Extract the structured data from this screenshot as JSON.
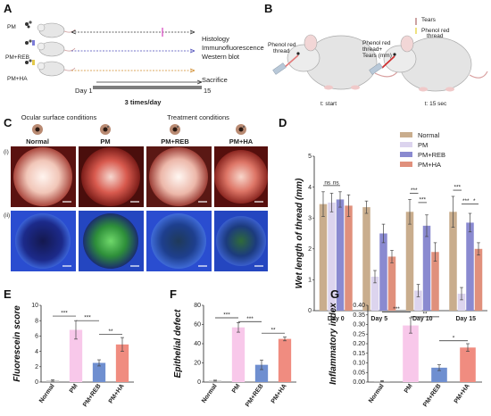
{
  "panel_labels": {
    "a": "A",
    "b": "B",
    "c": "C",
    "d": "D",
    "e": "E",
    "f": "F",
    "g": "G"
  },
  "panel_a": {
    "groups": [
      "PM",
      "PM+REB",
      "PM+HA"
    ],
    "outcomes": [
      "Histology",
      "Immunofluorescence",
      "Western blot"
    ],
    "sacrifice": "Sacrifice",
    "day_start": "Day 1",
    "day_end": "15",
    "frequency": "3 times/day"
  },
  "panel_b": {
    "left_label": "Phenol red thread",
    "left_caption": "t: start",
    "right_tears": "Tears",
    "right_thread": "Phenol red thread",
    "right_label": "Phenol red thread+ Tears (mm)",
    "right_caption": "t: 15 sec"
  },
  "panel_c": {
    "header_left": "Ocular surface conditions",
    "header_right": "Treatment conditions",
    "columns": [
      "Normal",
      "PM",
      "PM+REB",
      "PM+HA"
    ],
    "row_labels": [
      "(i)",
      "(ii)"
    ]
  },
  "chart_data": [
    {
      "id": "D",
      "type": "bar",
      "ylabel": "Wet length of thread (mm)",
      "ylim": [
        0,
        5
      ],
      "yticks": [
        "0",
        "1",
        "2",
        "3",
        "4",
        "5"
      ],
      "categories": [
        "Day 0",
        "Day 5",
        "Day 10",
        "Day 15"
      ],
      "legend_position": "top-right",
      "series": [
        {
          "name": "Normal",
          "color": "#c9ad8d",
          "values": [
            3.45,
            3.35,
            3.2,
            3.2
          ],
          "err": [
            0.4,
            0.2,
            0.4,
            0.5
          ]
        },
        {
          "name": "PM",
          "color": "#dcd4ee",
          "values": [
            3.5,
            1.1,
            0.65,
            0.55
          ],
          "err": [
            0.3,
            0.2,
            0.2,
            0.2
          ]
        },
        {
          "name": "PM+REB",
          "color": "#8a8ad0",
          "values": [
            3.6,
            2.5,
            2.75,
            2.85
          ],
          "err": [
            0.25,
            0.3,
            0.35,
            0.3
          ]
        },
        {
          "name": "PM+HA",
          "color": "#e0907c",
          "values": [
            3.4,
            1.75,
            1.9,
            2.0
          ],
          "err": [
            0.35,
            0.2,
            0.3,
            0.2
          ]
        }
      ],
      "annotations": [
        "ns",
        "ns",
        "***",
        "***",
        "***",
        "***",
        "*"
      ]
    },
    {
      "id": "E",
      "type": "bar",
      "ylabel": "Fluorescein score",
      "ylim": [
        0,
        10
      ],
      "yticks": [
        "0",
        "2",
        "4",
        "6",
        "8",
        "10"
      ],
      "categories": [
        "Normal",
        "PM",
        "PM+REB",
        "PM+HA"
      ],
      "colors": [
        "#bfbfbf",
        "#f8c8ea",
        "#6f8fd0",
        "#f08c80"
      ],
      "values": [
        0.2,
        6.8,
        2.5,
        4.9
      ],
      "err": [
        0.1,
        1.2,
        0.4,
        0.9
      ],
      "annotations": [
        "***",
        "***",
        "**"
      ]
    },
    {
      "id": "F",
      "type": "bar",
      "ylabel": "Epithelial defect",
      "ylim": [
        0,
        80
      ],
      "yticks": [
        "0",
        "20",
        "40",
        "60",
        "80"
      ],
      "categories": [
        "Normal",
        "PM",
        "PM+REB",
        "PM+HA"
      ],
      "colors": [
        "#bfbfbf",
        "#f8c8ea",
        "#6f8fd0",
        "#f08c80"
      ],
      "values": [
        1.5,
        57,
        18,
        45
      ],
      "err": [
        0.5,
        5,
        5,
        2
      ],
      "annotations": [
        "***",
        "***",
        "**"
      ]
    },
    {
      "id": "G",
      "type": "bar",
      "ylabel": "Inflammatory index",
      "ylim": [
        0,
        0.4
      ],
      "yticks": [
        "0.00",
        "0.05",
        "0.10",
        "0.15",
        "0.20",
        "0.25",
        "0.30",
        "0.35",
        "0.40"
      ],
      "categories": [
        "Normal",
        "PM",
        "PM+REB",
        "PM+HA"
      ],
      "colors": [
        "#bfbfbf",
        "#f8c8ea",
        "#6f8fd0",
        "#f08c80"
      ],
      "values": [
        0.005,
        0.295,
        0.075,
        0.18
      ],
      "err": [
        0.003,
        0.04,
        0.015,
        0.02
      ],
      "annotations": [
        "***",
        "**",
        "*"
      ]
    }
  ]
}
